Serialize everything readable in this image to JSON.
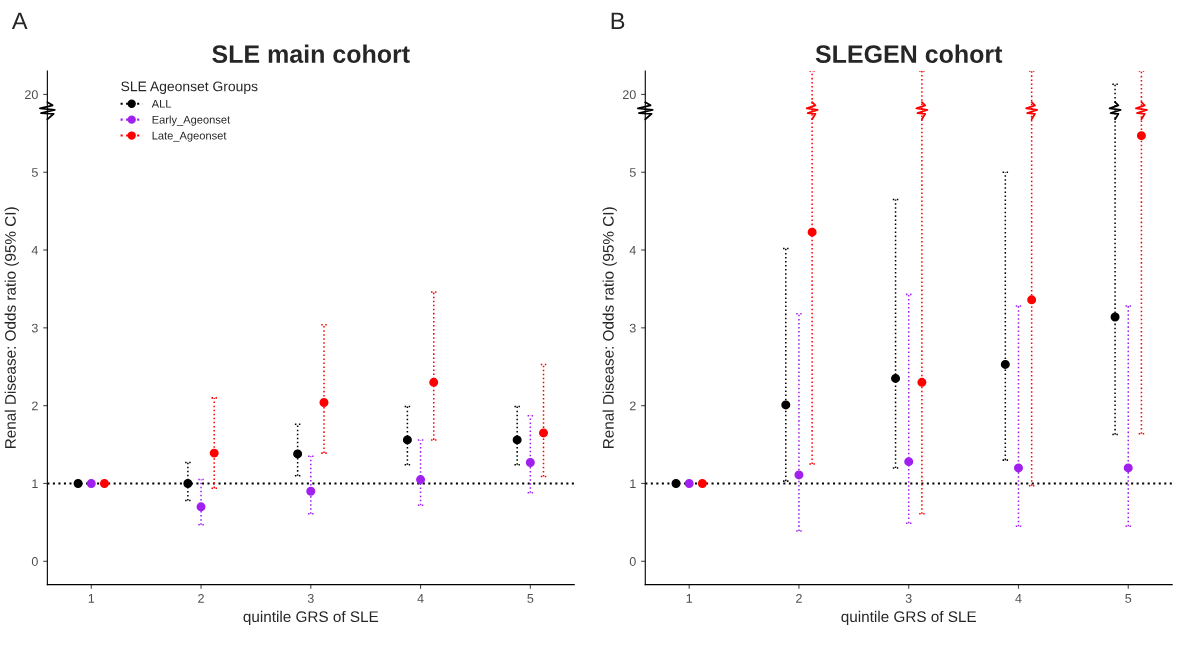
{
  "chart_data": [
    {
      "type": "scatter",
      "title": "SLE main cohort",
      "annotations": [
        "A",
        "20"
      ],
      "xlabel": "quintile GRS of SLE",
      "ylabel": "Renal Disease: Odds ratio (95% CI)",
      "legend_title": "SLE Ageonset Groups",
      "categories": [
        "1",
        "2",
        "3",
        "4",
        "5"
      ],
      "series": [
        {
          "name": "ALL",
          "color": "#000000",
          "values": [
            1,
            1.0,
            1.38,
            1.56,
            1.56
          ],
          "errors": [
            null,
            [
              0.78,
              1.27
            ],
            [
              1.1,
              1.76
            ],
            [
              1.24,
              1.99
            ],
            [
              1.24,
              1.99
            ]
          ]
        },
        {
          "name": "Early_Ageonset",
          "color": "#a020f0",
          "values": [
            1,
            0.7,
            0.9,
            1.05,
            1.27
          ],
          "errors": [
            null,
            [
              0.47,
              1.05
            ],
            [
              0.61,
              1.35
            ],
            [
              0.72,
              1.56
            ],
            [
              0.88,
              1.87
            ]
          ]
        },
        {
          "name": "Late_Ageonset",
          "color": "#ff0000",
          "values": [
            1,
            1.39,
            2.04,
            2.3,
            1.65
          ],
          "errors": [
            null,
            [
              0.94,
              2.1
            ],
            [
              1.39,
              3.04
            ],
            [
              1.56,
              3.46
            ],
            [
              1.09,
              2.53
            ]
          ]
        }
      ],
      "ylim": [
        -0.3,
        6.3
      ],
      "yticks": [
        0,
        1,
        2,
        3,
        4,
        5
      ],
      "ref_lines": [
        {
          "axis": "y",
          "value": 1,
          "color": "#000000",
          "line_style": "dotted"
        }
      ],
      "marker": "circle",
      "line_style": "dotted",
      "grid": false,
      "legend": "top left"
    },
    {
      "type": "scatter",
      "title": "SLEGEN cohort",
      "annotations": [
        "B",
        "20"
      ],
      "xlabel": "quintile GRS of SLE",
      "ylabel": "Renal Disease: Odds ratio (95% CI)",
      "categories": [
        "1",
        "2",
        "3",
        "4",
        "5"
      ],
      "series": [
        {
          "color": "#000000",
          "values": [
            1,
            2.01,
            2.35,
            2.53,
            3.14
          ],
          "errors": [
            null,
            [
              1.03,
              4.02
            ],
            [
              1.2,
              4.65
            ],
            [
              1.3,
              5.0
            ],
            [
              1.63,
              6.13
            ]
          ]
        },
        {
          "color": "#a020f0",
          "values": [
            1,
            1.11,
            1.28,
            1.2,
            1.2
          ],
          "errors": [
            null,
            [
              0.39,
              3.18
            ],
            [
              0.49,
              3.43
            ],
            [
              0.45,
              3.28
            ],
            [
              0.45,
              3.28
            ]
          ]
        },
        {
          "color": "#ff0000",
          "values": [
            1,
            4.23,
            2.3,
            3.36,
            5.47
          ],
          "errors": [
            null,
            [
              1.25,
              6.3
            ],
            [
              0.61,
              6.3
            ],
            [
              0.97,
              6.3
            ],
            [
              1.64,
              6.3
            ]
          ]
        }
      ],
      "ylim": [
        -0.3,
        6.3
      ],
      "yticks": [
        0,
        1,
        2,
        3,
        4,
        5
      ],
      "ref_lines": [
        {
          "axis": "y",
          "value": 1,
          "color": "#000000",
          "line_style": "dotted"
        }
      ],
      "marker": "circle",
      "line_style": "dotted",
      "grid": false
    }
  ]
}
